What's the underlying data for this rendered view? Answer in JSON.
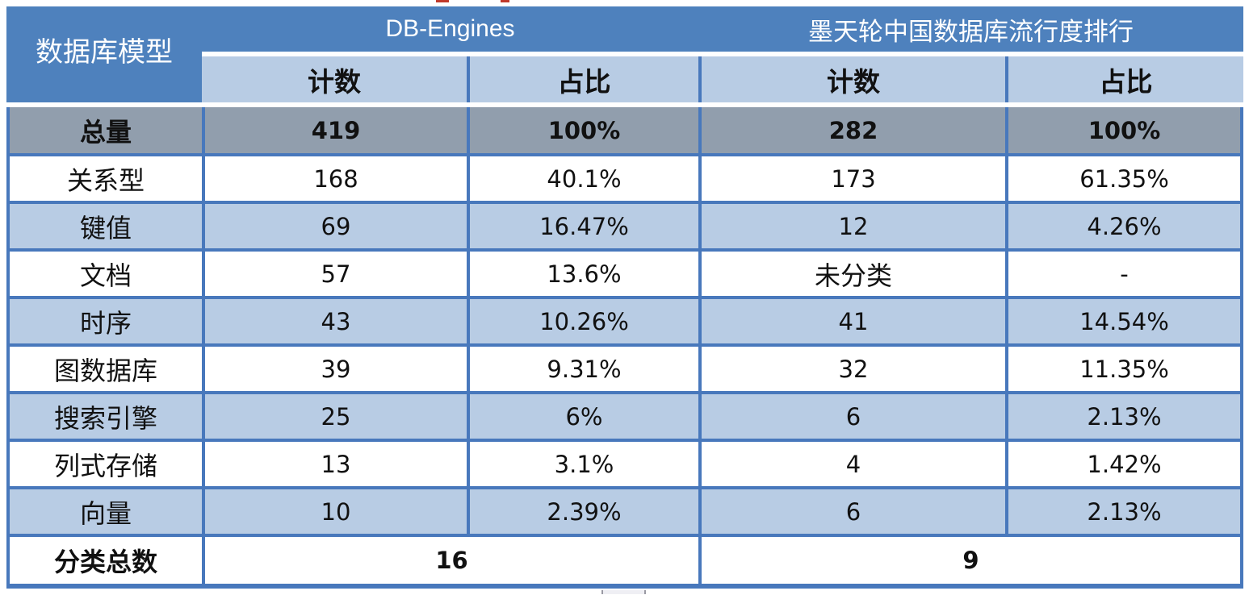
{
  "chart_data": {
    "type": "table",
    "corner_header": "数据库模型",
    "groups": [
      {
        "title": "DB-Engines",
        "subcolumns": [
          "计数",
          "占比"
        ]
      },
      {
        "title": "墨天轮中国数据库流行度排行",
        "subcolumns": [
          "计数",
          "占比"
        ]
      }
    ],
    "total_row": {
      "label": "总量",
      "cells": [
        "419",
        "100%",
        "282",
        "100%"
      ]
    },
    "rows": [
      {
        "label": "关系型",
        "cells": [
          "168",
          "40.1%",
          "173",
          "61.35%"
        ]
      },
      {
        "label": "键值",
        "cells": [
          "69",
          "16.47%",
          "12",
          "4.26%"
        ]
      },
      {
        "label": "文档",
        "cells": [
          "57",
          "13.6%",
          "未分类",
          "-"
        ]
      },
      {
        "label": "时序",
        "cells": [
          "43",
          "10.26%",
          "41",
          "14.54%"
        ]
      },
      {
        "label": "图数据库",
        "cells": [
          "39",
          "9.31%",
          "32",
          "11.35%"
        ]
      },
      {
        "label": "搜索引擎",
        "cells": [
          "25",
          "6%",
          "6",
          "2.13%"
        ]
      },
      {
        "label": "列式存储",
        "cells": [
          "13",
          "3.1%",
          "4",
          "1.42%"
        ]
      },
      {
        "label": "向量",
        "cells": [
          "10",
          "2.39%",
          "6",
          "2.13%"
        ]
      }
    ],
    "summary_row": {
      "label": "分类总数",
      "db_engines_total": "16",
      "modb_total": "9"
    }
  },
  "colors": {
    "header_blue": "#4E81BD",
    "grid_blue": "#4878BC",
    "band_light_blue": "#B8CCE4",
    "total_row_gray": "#919EAD",
    "header_text": "#FFFFFF",
    "body_text": "#111111",
    "artifact_red": "#C0392B"
  }
}
